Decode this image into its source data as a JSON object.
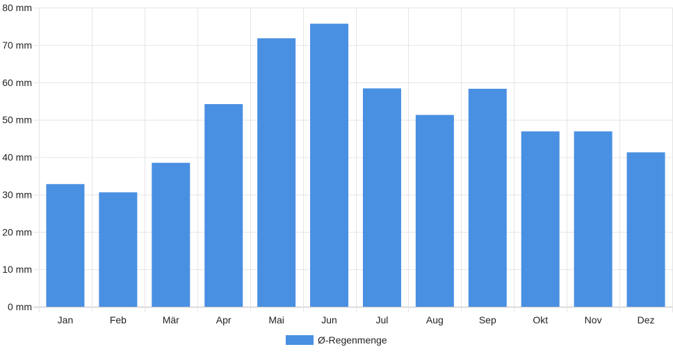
{
  "chart_data": {
    "type": "bar",
    "categories": [
      "Jan",
      "Feb",
      "Mär",
      "Apr",
      "Mai",
      "Jun",
      "Jul",
      "Aug",
      "Sep",
      "Okt",
      "Nov",
      "Dez"
    ],
    "series": [
      {
        "name": "Ø-Regenmenge",
        "values": [
          32.8,
          30.6,
          38.5,
          54.2,
          71.8,
          75.7,
          58.4,
          51.3,
          58.3,
          46.9,
          46.9,
          41.3
        ],
        "color": "#4a90e2"
      }
    ],
    "title": "",
    "xlabel": "",
    "ylabel": "",
    "ylim": [
      0,
      80
    ],
    "ytick_step": 10,
    "ytick_unit": "mm",
    "grid": true,
    "legend_position": "bottom-center"
  }
}
